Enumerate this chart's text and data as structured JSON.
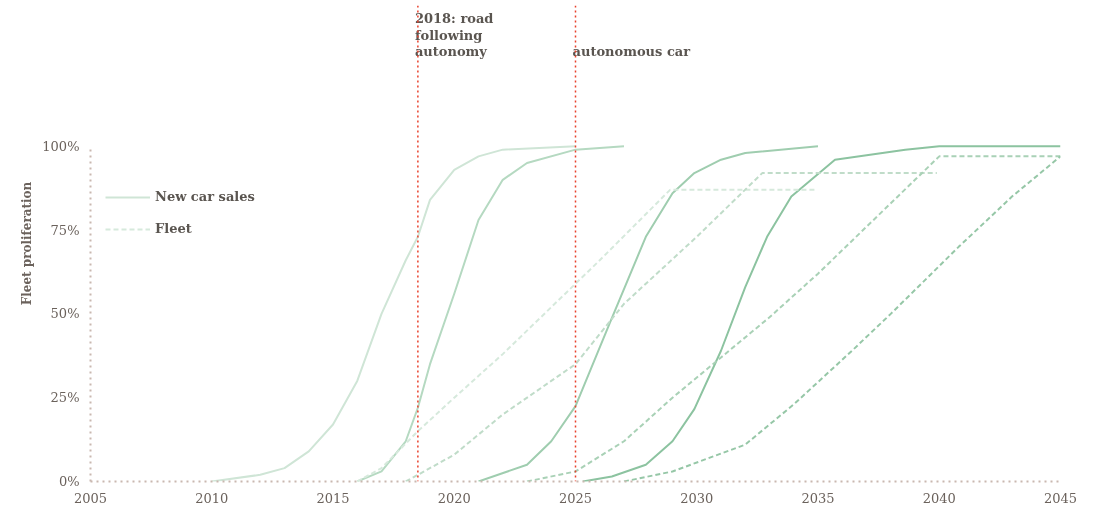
{
  "chart_data": {
    "type": "line",
    "ylabel": "Fleet proliferation",
    "xlim": [
      2005,
      2045
    ],
    "xticks": [
      2005,
      2010,
      2015,
      2020,
      2025,
      2030,
      2035,
      2040,
      2045
    ],
    "ylim": [
      0,
      100
    ],
    "yticks": [
      {
        "value": 0,
        "label": "0%"
      },
      {
        "value": 25,
        "label": "25%"
      },
      {
        "value": 50,
        "label": "50%"
      },
      {
        "value": 75,
        "label": "75%"
      },
      {
        "value": 100,
        "label": "100%"
      }
    ],
    "grid": false,
    "legend": "top left",
    "marker": "none",
    "series": [
      {
        "name": "New car sales",
        "color": "#cfe5d6",
        "line_style": "solid",
        "x": [
          2010,
          2012,
          2013,
          2014,
          2015,
          2016,
          2017,
          2018,
          2018.5,
          2019,
          2020,
          2021,
          2022,
          2025
        ],
        "values": [
          0,
          2,
          4,
          9,
          17,
          30,
          50,
          66,
          73,
          84,
          93,
          97,
          99,
          100
        ]
      },
      {
        "color": "#b5d9c1",
        "line_style": "solid",
        "x": [
          2016,
          2017,
          2018,
          2018.5,
          2019,
          2020,
          2021,
          2022,
          2023,
          2025,
          2027
        ],
        "values": [
          0,
          3,
          12,
          22,
          35,
          56,
          78,
          90,
          95,
          99,
          100
        ]
      },
      {
        "color": "#9fcdaf",
        "line_style": "solid",
        "x": [
          2021,
          2023,
          2024,
          2025,
          2026.4,
          2027.9,
          2029,
          2029.9,
          2031,
          2032,
          2035
        ],
        "values": [
          0,
          5,
          12,
          22.5,
          47,
          73,
          86,
          92,
          96,
          98,
          100
        ]
      },
      {
        "color": "#8cc3a0",
        "line_style": "solid",
        "x": [
          2025.3,
          2026.5,
          2027.9,
          2029,
          2029.9,
          2031,
          2032,
          2032.9,
          2033.9,
          2035.7,
          2038.6,
          2040,
          2045
        ],
        "values": [
          0,
          1.5,
          5,
          12,
          21.6,
          39,
          58,
          73,
          85,
          96,
          99,
          100,
          100
        ]
      },
      {
        "name": "Fleet",
        "color": "#d6e9dc",
        "line_style": "dashed",
        "x": [
          2016,
          2017,
          2018.5,
          2020,
          2022,
          2024,
          2026,
          2028.9,
          2034.9
        ],
        "values": [
          0,
          4,
          15,
          25,
          38,
          52,
          66,
          87,
          87
        ]
      },
      {
        "color": "#c0dcc9",
        "line_style": "dashed",
        "x": [
          2018,
          2020,
          2022,
          2024,
          2025,
          2027,
          2030,
          2032.7,
          2039.9
        ],
        "values": [
          0,
          8,
          20,
          30,
          35,
          53,
          73,
          92,
          92
        ]
      },
      {
        "color": "#a9d1b6",
        "line_style": "dashed",
        "x": [
          2023,
          2025,
          2027,
          2029,
          2031,
          2033,
          2035,
          2037,
          2039,
          2040,
          2045
        ],
        "values": [
          0,
          3,
          12,
          25,
          37,
          49,
          62,
          76,
          90,
          97,
          97
        ]
      },
      {
        "color": "#96c7a7",
        "line_style": "dashed",
        "x": [
          2027,
          2029,
          2032,
          2034,
          2036.4,
          2038,
          2040.8,
          2043,
          2045
        ],
        "values": [
          0,
          3,
          11,
          23,
          39,
          50,
          70,
          85,
          97
        ]
      }
    ],
    "ref_lines": [
      {
        "axis": "x",
        "value": 2018.5,
        "label": "2018: road following autonomy",
        "color": "#e8412c",
        "line_style": "dotted"
      },
      {
        "axis": "x",
        "value": 2025,
        "label": "autonomous car",
        "color": "#e8412c",
        "line_style": "dotted"
      }
    ]
  }
}
